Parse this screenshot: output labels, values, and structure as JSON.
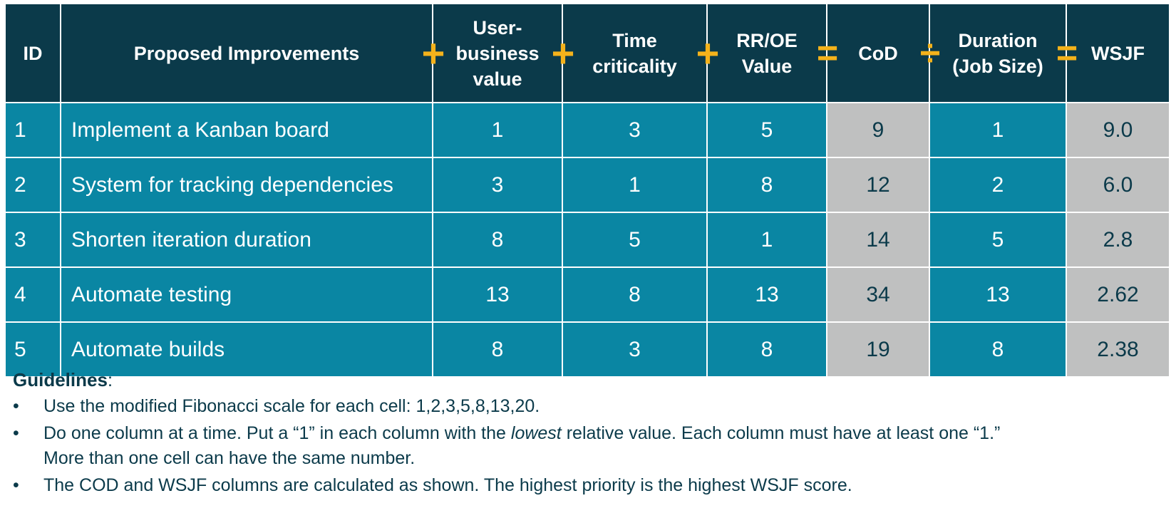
{
  "table": {
    "headers": {
      "id": "ID",
      "improvements": "Proposed Improvements",
      "user_business_value": [
        "User-",
        "business",
        "value"
      ],
      "time_criticality": [
        "Time",
        "criticality"
      ],
      "rr_oe_value": [
        "RR/OE",
        "Value"
      ],
      "cod": "CoD",
      "duration": [
        "Duration",
        "(Job Size)"
      ],
      "wsjf": "WSJF"
    },
    "operators": {
      "before_user_business_value": "+",
      "before_time_criticality": "+",
      "before_rr_oe_value": "+",
      "before_cod": "=",
      "before_duration": "÷",
      "before_wsjf": "="
    },
    "rows": [
      {
        "id": "1",
        "improvement": "Implement a Kanban board",
        "user_business_value": "1",
        "time_criticality": "3",
        "rr_oe_value": "5",
        "cod": "9",
        "duration": "1",
        "wsjf": "9.0"
      },
      {
        "id": "2",
        "improvement": "System for tracking dependencies",
        "user_business_value": "3",
        "time_criticality": "1",
        "rr_oe_value": "8",
        "cod": "12",
        "duration": "2",
        "wsjf": "6.0"
      },
      {
        "id": "3",
        "improvement": "Shorten iteration duration",
        "user_business_value": "8",
        "time_criticality": "5",
        "rr_oe_value": "1",
        "cod": "14",
        "duration": "5",
        "wsjf": "2.8"
      },
      {
        "id": "4",
        "improvement": "Automate testing",
        "user_business_value": "13",
        "time_criticality": "8",
        "rr_oe_value": "13",
        "cod": "34",
        "duration": "13",
        "wsjf": "2.62"
      },
      {
        "id": "5",
        "improvement": "Automate builds",
        "user_business_value": "8",
        "time_criticality": "3",
        "rr_oe_value": "8",
        "cod": "19",
        "duration": "8",
        "wsjf": "2.38"
      }
    ]
  },
  "guidelines": {
    "title": "Guidelines",
    "title_suffix": ":",
    "bullet": "•",
    "items": {
      "scale": "Use the modified Fibonacci scale for each cell: 1,2,3,5,8,13,20.",
      "column_a": "Do one column at a time. Put a “1” in each column with the ",
      "column_em": "lowest",
      "column_b": " relative value. Each column must have at least one “1.”",
      "column_c": "More than one cell can have the same number.",
      "calc": "The COD and WSJF columns are calculated as shown. The highest priority is the highest WSJF score."
    }
  },
  "colors": {
    "header_bg": "#0b3a4a",
    "row_bg": "#0a86a3",
    "calc_bg": "#bfc0c0",
    "operator": "#f4b21b",
    "text_dark": "#0b3a4a"
  }
}
